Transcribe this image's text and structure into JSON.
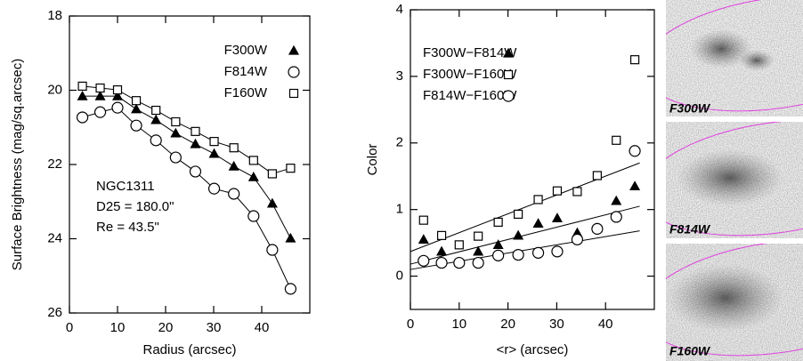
{
  "chart_data": [
    {
      "type": "line",
      "xlabel": "Radius (arcsec)",
      "ylabel": "Surface Brightness (mag/sq.arcsec)",
      "xlim": [
        0,
        50
      ],
      "xticks": [
        0,
        10,
        20,
        30,
        40
      ],
      "ylim": [
        18,
        26
      ],
      "yticks": [
        18,
        20,
        22,
        24,
        26
      ],
      "y_inverted": true,
      "x": [
        2.7,
        6.4,
        10,
        13.9,
        18,
        22.1,
        26.2,
        30.1,
        34.2,
        38.3,
        42.2,
        46
      ],
      "series": [
        {
          "name": "F300W",
          "marker": "triangle",
          "color": "#000",
          "values": [
            20.16,
            20.16,
            20.16,
            20.51,
            20.8,
            21.16,
            21.45,
            21.71,
            22.05,
            22.34,
            23.05,
            23.99
          ]
        },
        {
          "name": "F814W",
          "marker": "circle",
          "color": "#000",
          "values": [
            20.73,
            20.59,
            20.47,
            20.95,
            21.35,
            21.81,
            22.19,
            22.65,
            22.79,
            23.39,
            24.3,
            25.35
          ]
        },
        {
          "name": "F160W",
          "marker": "square",
          "color": "#000",
          "values": [
            19.89,
            19.94,
            19.99,
            20.28,
            20.54,
            20.85,
            21.11,
            21.38,
            21.55,
            21.89,
            22.25,
            22.1
          ]
        }
      ],
      "annotations": [
        "NGC1311",
        "D25 = 180.0\"",
        "Re  =  43.5\""
      ]
    },
    {
      "type": "scatter",
      "xlabel": "<r> (arcsec)",
      "ylabel": "Color",
      "xlim": [
        0,
        50
      ],
      "xticks": [
        0,
        10,
        20,
        30,
        40
      ],
      "ylim": [
        -0.5,
        4
      ],
      "yticks": [
        0,
        1,
        2,
        3,
        4
      ],
      "x": [
        2.7,
        6.4,
        10,
        13.9,
        18,
        22.1,
        26.2,
        30.1,
        34.2,
        38.3,
        42.2,
        46
      ],
      "series": [
        {
          "name": "F300W−F814W",
          "marker": "triangle",
          "color": "#000",
          "values": [
            0.55,
            0.37,
            0.21,
            0.37,
            0.47,
            0.61,
            0.79,
            0.87,
            0.65,
            0.72,
            1.13,
            1.35
          ],
          "fit": {
            "x": [
              0,
              47
            ],
            "y": [
              0.18,
              1.05
            ]
          }
        },
        {
          "name": "F300W−F160W",
          "marker": "square",
          "color": "#000",
          "values": [
            0.84,
            0.61,
            0.47,
            0.6,
            0.81,
            0.93,
            1.15,
            1.28,
            1.27,
            1.51,
            2.04,
            3.25
          ],
          "fit": {
            "x": [
              0,
              47
            ],
            "y": [
              0.37,
              1.7
            ]
          }
        },
        {
          "name": "F814W−F160W",
          "marker": "circle",
          "color": "#000",
          "values": [
            0.23,
            0.2,
            0.2,
            0.2,
            0.31,
            0.32,
            0.35,
            0.37,
            0.55,
            0.71,
            0.89,
            1.88
          ],
          "fit": {
            "x": [
              0,
              47
            ],
            "y": [
              0.1,
              0.68
            ]
          }
        }
      ]
    }
  ],
  "panels": [
    {
      "label": "F300W"
    },
    {
      "label": "F814W"
    },
    {
      "label": "F160W"
    }
  ]
}
